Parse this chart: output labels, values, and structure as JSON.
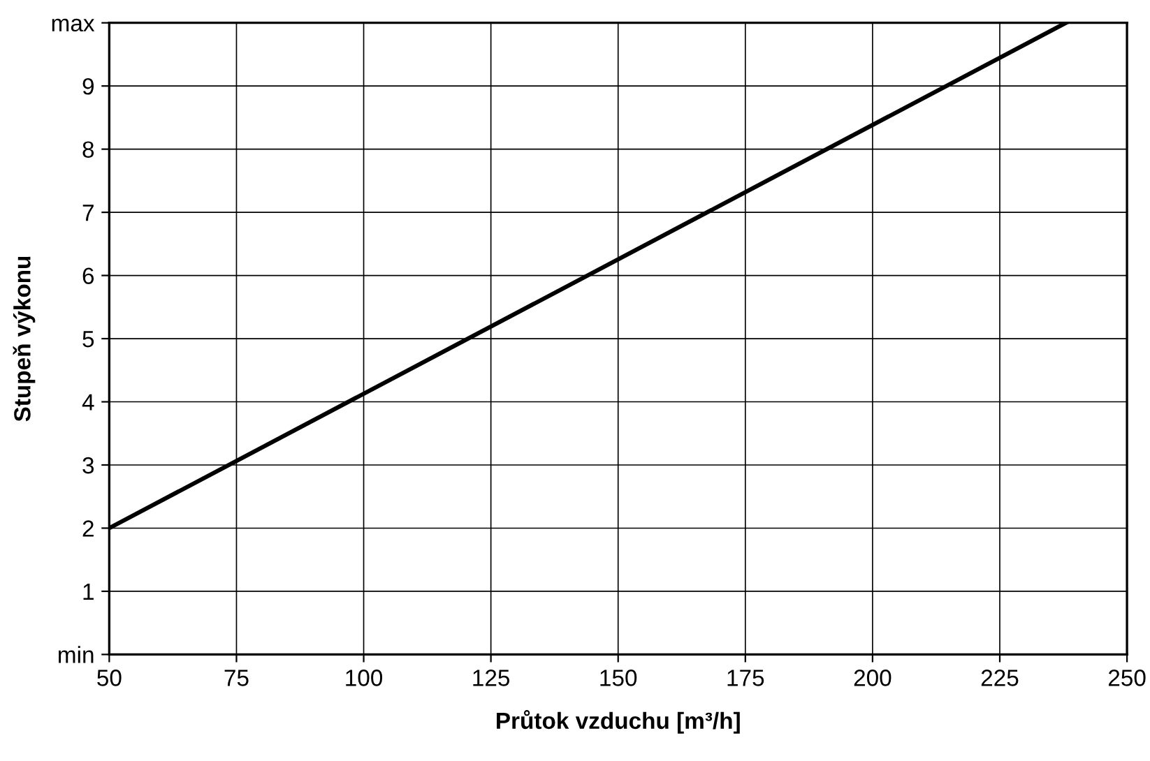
{
  "chart_data": {
    "type": "line",
    "xlabel": "Průtok vzduchu [m³/h]",
    "ylabel": "Stupeň výkonu",
    "series": [
      {
        "color": "#000000",
        "x": [
          50,
          238
        ],
        "values": [
          2,
          10
        ]
      }
    ],
    "xlim": [
      50,
      250
    ],
    "xticks": [
      50,
      75,
      100,
      125,
      150,
      175,
      200,
      225,
      250
    ],
    "ylim": [
      0,
      10
    ],
    "yticks": [
      {
        "value": 0,
        "label": "min"
      },
      1,
      2,
      3,
      4,
      5,
      6,
      7,
      8,
      9,
      {
        "value": 10,
        "label": "max"
      }
    ],
    "grid": true,
    "line_style": "solid",
    "marker": "none"
  }
}
